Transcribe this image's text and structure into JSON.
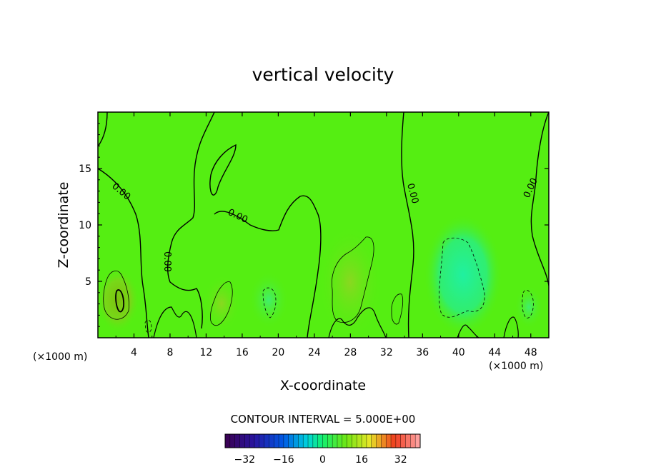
{
  "chart_data": {
    "type": "heatmap",
    "title": "vertical velocity",
    "xlabel": "X-coordinate",
    "ylabel": "Z-coordinate",
    "x_unit": "(×1000 m)",
    "z_unit": "(×1000 m)",
    "xlim": [
      0,
      50
    ],
    "zlim": [
      0,
      20
    ],
    "x_ticks": [
      "4",
      "8",
      "12",
      "16",
      "20",
      "24",
      "28",
      "32",
      "36",
      "40",
      "44",
      "48"
    ],
    "z_ticks": [
      "5",
      "10",
      "15"
    ],
    "contour_interval_text": "CONTOUR INTERVAL = 5.000E+00",
    "contour_label": "0.00",
    "colorbar": {
      "min": -40,
      "max": 40,
      "ticks": [
        "−32",
        "−16",
        "0",
        "16",
        "32"
      ]
    },
    "features": [
      {
        "kind": "updraft",
        "x": 2,
        "z": 3.5,
        "value": 12
      },
      {
        "kind": "updraft",
        "x": 14,
        "z": 3,
        "value": 8
      },
      {
        "kind": "updraft",
        "x": 29,
        "z": 5,
        "value": 8
      },
      {
        "kind": "downdraft",
        "x": 41,
        "z": 5.5,
        "value": -8
      },
      {
        "kind": "downdraft",
        "x": 19,
        "z": 3,
        "value": -5
      }
    ],
    "grid": false
  }
}
